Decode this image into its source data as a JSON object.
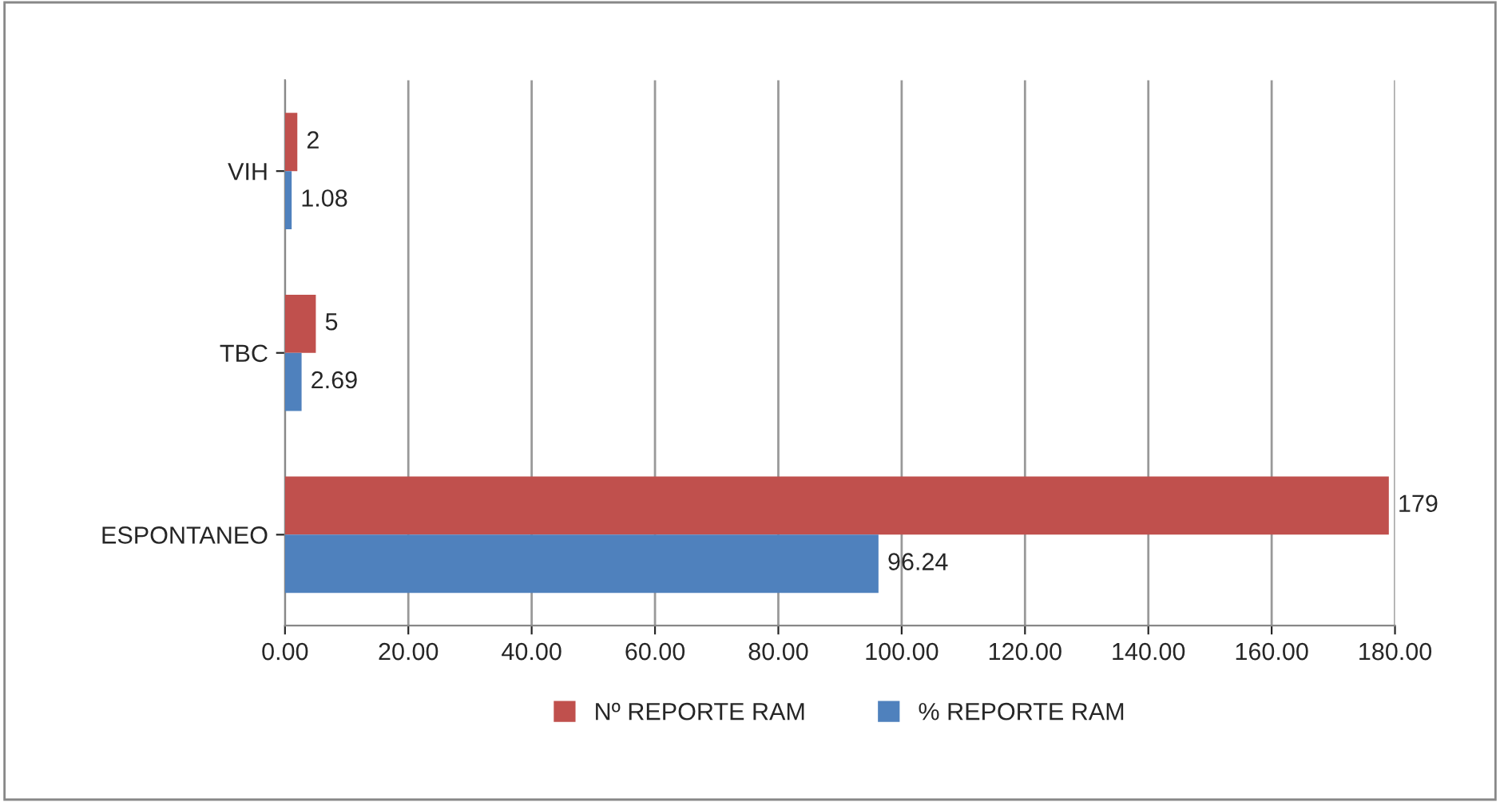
{
  "chart_data": {
    "type": "bar",
    "orientation": "horizontal",
    "categories": [
      "VIH",
      "TBC",
      "ESPONTANEO"
    ],
    "series": [
      {
        "name": "Nº REPORTE RAM",
        "color": "#c0504d",
        "values": [
          2,
          5,
          179
        ]
      },
      {
        "name": "% REPORTE RAM",
        "color": "#4f81bd",
        "values": [
          1.08,
          2.69,
          96.24
        ]
      }
    ],
    "xlim": [
      0,
      180
    ],
    "xticks": [
      {
        "value": 0,
        "label": "0.00"
      },
      {
        "value": 20,
        "label": "20.00"
      },
      {
        "value": 40,
        "label": "40.00"
      },
      {
        "value": 60,
        "label": "60.00"
      },
      {
        "value": 80,
        "label": "80.00"
      },
      {
        "value": 100,
        "label": "100.00"
      },
      {
        "value": 120,
        "label": "120.00"
      },
      {
        "value": 140,
        "label": "140.00"
      },
      {
        "value": 160,
        "label": "160.00"
      },
      {
        "value": 180,
        "label": "180.00"
      }
    ],
    "grid": "x",
    "legend": "bottom",
    "data_labels": true
  }
}
